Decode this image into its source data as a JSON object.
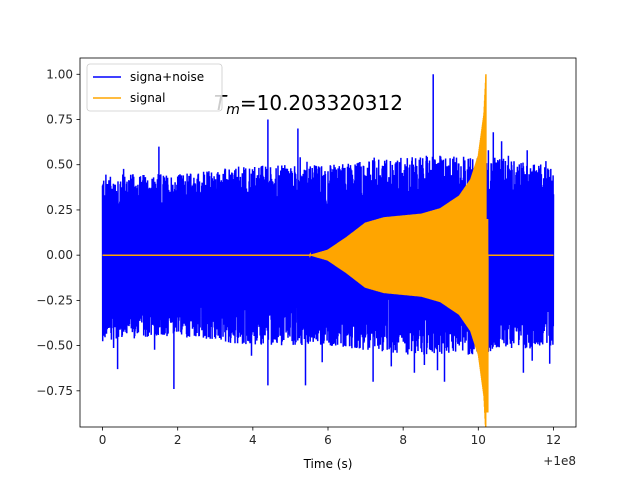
{
  "chart_data": {
    "type": "line",
    "xlabel": "Time (s)",
    "ylabel": "",
    "x_offset_label": "+1e8",
    "xlim": [
      -0.6,
      12.6
    ],
    "ylim": [
      -0.95,
      1.09
    ],
    "x_ticks": [
      0,
      2,
      4,
      6,
      8,
      10,
      12
    ],
    "y_ticks": [
      -0.75,
      -0.5,
      -0.25,
      0.0,
      0.25,
      0.5,
      0.75,
      1.0
    ],
    "x_tick_labels": [
      "0",
      "2",
      "4",
      "6",
      "8",
      "10",
      "12"
    ],
    "y_tick_labels": [
      "−0.75",
      "−0.50",
      "−0.25",
      "0.00",
      "0.25",
      "0.50",
      "0.75",
      "1.00"
    ],
    "grid": false,
    "legend_position": "top-left",
    "annotation": {
      "main": "T",
      "subscript": "m",
      "value": "=10.203320312"
    },
    "series": [
      {
        "name": "signa+noise",
        "color": "#0000ff",
        "x_range": [
          0,
          12.0
        ],
        "envelope_upper": [
          [
            0,
            0.45
          ],
          [
            2,
            0.45
          ],
          [
            4,
            0.5
          ],
          [
            6,
            0.5
          ],
          [
            8,
            0.55
          ],
          [
            10,
            0.55
          ],
          [
            12,
            0.5
          ]
        ],
        "envelope_lower": [
          [
            0,
            -0.47
          ],
          [
            2,
            -0.45
          ],
          [
            4,
            -0.5
          ],
          [
            6,
            -0.5
          ],
          [
            8,
            -0.55
          ],
          [
            10,
            -0.55
          ],
          [
            12,
            -0.5
          ]
        ],
        "peaks": [
          [
            1.5,
            0.6
          ],
          [
            4.4,
            0.75
          ],
          [
            5.2,
            0.7
          ],
          [
            8.8,
            1.0
          ],
          [
            10.4,
            0.68
          ],
          [
            10.8,
            0.55
          ],
          [
            11.3,
            0.58
          ],
          [
            11.8,
            0.52
          ],
          [
            0.4,
            -0.63
          ],
          [
            1.9,
            -0.74
          ],
          [
            4.4,
            -0.72
          ],
          [
            5.4,
            -0.72
          ],
          [
            7.2,
            -0.7
          ],
          [
            8.3,
            -0.65
          ],
          [
            9.1,
            -0.7
          ],
          [
            10.2,
            -0.55
          ],
          [
            11.2,
            -0.65
          ],
          [
            11.9,
            -0.6
          ]
        ]
      },
      {
        "name": "signal",
        "color": "#ffa500",
        "x_range": [
          0,
          12.0
        ],
        "envelope": [
          [
            0,
            0
          ],
          [
            5.5,
            0.0
          ],
          [
            6.0,
            0.03
          ],
          [
            6.5,
            0.1
          ],
          [
            7.0,
            0.18
          ],
          [
            7.5,
            0.21
          ],
          [
            8.0,
            0.22
          ],
          [
            8.5,
            0.23
          ],
          [
            9.0,
            0.26
          ],
          [
            9.5,
            0.33
          ],
          [
            9.8,
            0.42
          ],
          [
            10.0,
            0.55
          ],
          [
            10.15,
            0.78
          ],
          [
            10.2033,
            1.0
          ],
          [
            10.22,
            0.0
          ],
          [
            12.0,
            0.0
          ]
        ],
        "min_value": -0.87,
        "merger_time": 10.203320312
      }
    ]
  }
}
